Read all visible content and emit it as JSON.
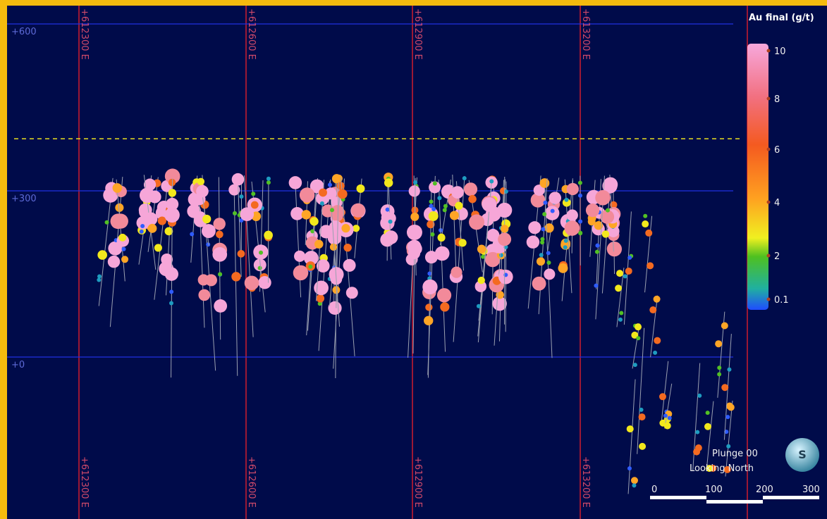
{
  "view": {
    "plunge": "Plunge 00",
    "direction": "Looking North"
  },
  "grid": {
    "eastings": [
      "+612300 E",
      "+612600 E",
      "+612900 E",
      "+613200 E"
    ],
    "elevations": [
      "+600",
      "+300",
      "+0"
    ]
  },
  "legend": {
    "title": "Au final (g/t)",
    "ticks": [
      "10",
      "8",
      "6",
      "4",
      "2",
      "0.1"
    ]
  },
  "scale_bar": {
    "labels": [
      "0",
      "100",
      "200",
      "300"
    ]
  },
  "compass": "S"
}
